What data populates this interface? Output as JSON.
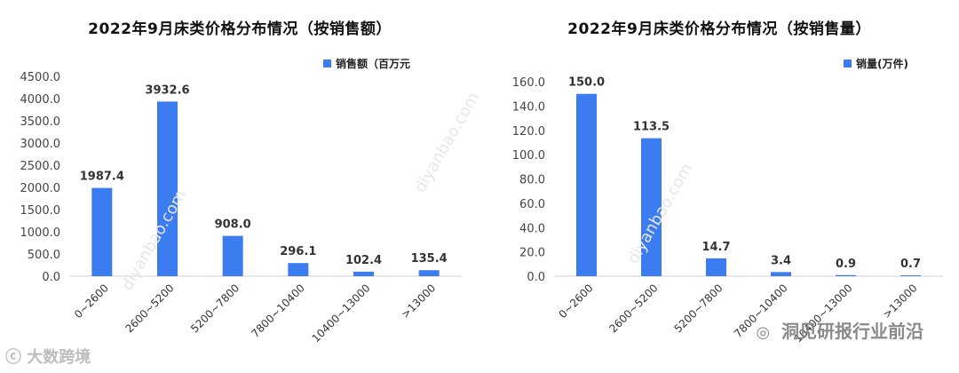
{
  "chart_data": [
    {
      "type": "bar",
      "title": "2022年9月床类价格分布情况（按销售额）",
      "categories": [
        "0~2600",
        "2600~5200",
        "5200~7800",
        "7800~10400",
        "10400~13000",
        ">13000"
      ],
      "series": [
        {
          "name": "销售额（百万元",
          "values": [
            1987.4,
            3932.6,
            908.0,
            296.1,
            102.4,
            135.4
          ]
        }
      ],
      "ylim": [
        0,
        4500
      ],
      "yticks": [
        "0.0",
        "500.0",
        "1000.0",
        "1500.0",
        "2000.0",
        "2500.0",
        "3000.0",
        "3500.0",
        "4000.0",
        "4500.0"
      ],
      "data_labels": [
        "1987.4",
        "3932.6",
        "908.0",
        "296.1",
        "102.4",
        "135.4"
      ],
      "legend": "top-right",
      "grid": false,
      "bar_color": "#3b7cf0"
    },
    {
      "type": "bar",
      "title": "2022年9月床类价格分布情况（按销售量）",
      "categories": [
        "0~2600",
        "2600~5200",
        "5200~7800",
        "7800~10400",
        "10400~13000",
        ">13000"
      ],
      "series": [
        {
          "name": "销量(万件)",
          "values": [
            150.0,
            113.5,
            14.7,
            3.4,
            0.9,
            0.7
          ]
        }
      ],
      "ylim": [
        0,
        160
      ],
      "yticks": [
        "0.0",
        "20.0",
        "40.0",
        "60.0",
        "80.0",
        "100.0",
        "120.0",
        "140.0",
        "160.0"
      ],
      "data_labels": [
        "150.0",
        "113.5",
        "14.7",
        "3.4",
        "0.9",
        "0.7"
      ],
      "legend": "top-right",
      "grid": false,
      "bar_color": "#3b7cf0"
    }
  ],
  "watermark": "diyanbao.com",
  "footer": {
    "left_brand": "大数跨境",
    "right_brand": "洞见研报行业前沿"
  }
}
